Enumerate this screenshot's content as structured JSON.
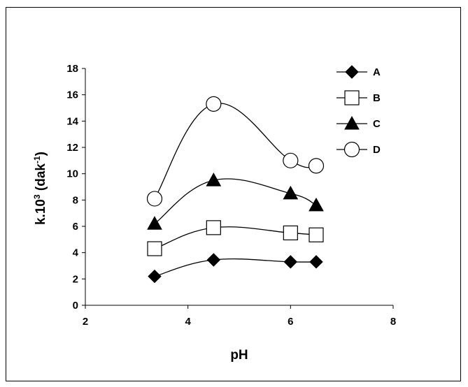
{
  "chart_data": {
    "type": "line",
    "title": "",
    "xlabel": "pH",
    "ylabel_main": "k.10",
    "ylabel_sup": "3",
    "ylabel_unit": " (dak",
    "ylabel_unit_sup": "-1",
    "ylabel_close": ")",
    "xlim": [
      2,
      8
    ],
    "ylim": [
      0,
      18
    ],
    "x_ticks": [
      "2",
      "4",
      "6",
      "8"
    ],
    "y_ticks": [
      "0",
      "2",
      "4",
      "6",
      "8",
      "10",
      "12",
      "14",
      "16",
      "18"
    ],
    "grid": false,
    "legend_position": "top-right",
    "series": [
      {
        "name": "A",
        "marker": "diamond",
        "x": [
          3.35,
          4.5,
          6.0,
          6.5
        ],
        "y": [
          2.2,
          3.45,
          3.3,
          3.3
        ]
      },
      {
        "name": "B",
        "marker": "square-open",
        "x": [
          3.35,
          4.5,
          6.0,
          6.5
        ],
        "y": [
          4.3,
          5.9,
          5.5,
          5.35
        ]
      },
      {
        "name": "C",
        "marker": "triangle",
        "x": [
          3.35,
          4.5,
          6.0,
          6.5
        ],
        "y": [
          6.2,
          9.5,
          8.5,
          7.6
        ]
      },
      {
        "name": "D",
        "marker": "circle-open",
        "x": [
          3.35,
          4.5,
          6.0,
          6.5
        ],
        "y": [
          8.1,
          15.3,
          11.0,
          10.6
        ]
      }
    ]
  }
}
